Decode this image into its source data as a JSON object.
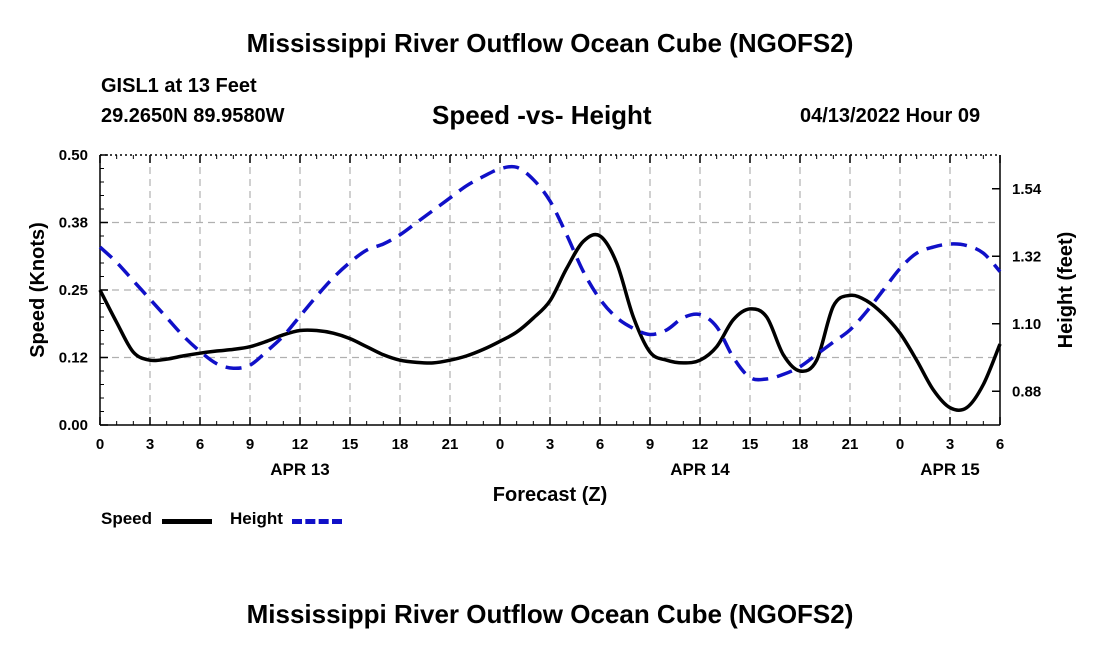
{
  "header": {
    "title": "Mississippi River Outflow Ocean Cube (NGOFS2)",
    "station": "GISL1 at 13 Feet",
    "coords": "29.2650N  89.9580W",
    "subtitle": "Speed -vs- Height",
    "datetime": "04/13/2022 Hour 09",
    "footer_title": "Mississippi River Outflow Ocean Cube (NGOFS2)"
  },
  "legend": {
    "speed_label": "Speed",
    "height_label": "Height"
  },
  "chart_data": {
    "type": "line",
    "title": "Speed -vs- Height",
    "xlabel": "Forecast (Z)",
    "ylabel_left": "Speed (Knots)",
    "ylabel_right": "Height (feet)",
    "x_hours_range": [
      0,
      54
    ],
    "x_ticks": [
      {
        "h": 0,
        "label": "0"
      },
      {
        "h": 3,
        "label": "3"
      },
      {
        "h": 6,
        "label": "6"
      },
      {
        "h": 9,
        "label": "9"
      },
      {
        "h": 12,
        "label": "12"
      },
      {
        "h": 15,
        "label": "15"
      },
      {
        "h": 18,
        "label": "18"
      },
      {
        "h": 21,
        "label": "21"
      },
      {
        "h": 24,
        "label": "0"
      },
      {
        "h": 27,
        "label": "3"
      },
      {
        "h": 30,
        "label": "6"
      },
      {
        "h": 33,
        "label": "9"
      },
      {
        "h": 36,
        "label": "12"
      },
      {
        "h": 39,
        "label": "15"
      },
      {
        "h": 42,
        "label": "18"
      },
      {
        "h": 45,
        "label": "21"
      },
      {
        "h": 48,
        "label": "0"
      },
      {
        "h": 51,
        "label": "3"
      },
      {
        "h": 54,
        "label": "6"
      }
    ],
    "date_labels": [
      {
        "h": 12,
        "label": "APR 13"
      },
      {
        "h": 36,
        "label": "APR 14"
      },
      {
        "h": 51,
        "label": "APR 15"
      }
    ],
    "y_left": {
      "range": [
        0,
        0.5
      ],
      "ticks": [
        {
          "v": 0.0,
          "label": "0.00"
        },
        {
          "v": 0.125,
          "label": "0.12"
        },
        {
          "v": 0.25,
          "label": "0.25"
        },
        {
          "v": 0.375,
          "label": "0.38"
        },
        {
          "v": 0.5,
          "label": "0.50"
        }
      ]
    },
    "y_right": {
      "range": [
        0.77,
        1.65
      ],
      "ticks": [
        {
          "v": 0.88,
          "label": "0.88"
        },
        {
          "v": 1.1,
          "label": "1.10"
        },
        {
          "v": 1.32,
          "label": "1.32"
        },
        {
          "v": 1.54,
          "label": "1.54"
        }
      ]
    },
    "series": [
      {
        "name": "Speed",
        "axis": "left",
        "color": "#000000",
        "style": "solid",
        "points": [
          [
            0,
            0.25
          ],
          [
            1,
            0.19
          ],
          [
            2,
            0.135
          ],
          [
            3,
            0.12
          ],
          [
            4,
            0.122
          ],
          [
            5,
            0.128
          ],
          [
            6,
            0.133
          ],
          [
            7,
            0.137
          ],
          [
            8,
            0.14
          ],
          [
            9,
            0.145
          ],
          [
            10,
            0.155
          ],
          [
            11,
            0.167
          ],
          [
            12,
            0.175
          ],
          [
            13,
            0.175
          ],
          [
            14,
            0.17
          ],
          [
            15,
            0.16
          ],
          [
            16,
            0.145
          ],
          [
            17,
            0.13
          ],
          [
            18,
            0.12
          ],
          [
            19,
            0.116
          ],
          [
            20,
            0.115
          ],
          [
            21,
            0.12
          ],
          [
            22,
            0.128
          ],
          [
            23,
            0.14
          ],
          [
            24,
            0.155
          ],
          [
            25,
            0.172
          ],
          [
            26,
            0.198
          ],
          [
            27,
            0.23
          ],
          [
            28,
            0.29
          ],
          [
            29,
            0.34
          ],
          [
            30,
            0.35
          ],
          [
            31,
            0.3
          ],
          [
            32,
            0.2
          ],
          [
            33,
            0.135
          ],
          [
            34,
            0.12
          ],
          [
            35,
            0.115
          ],
          [
            36,
            0.12
          ],
          [
            37,
            0.145
          ],
          [
            38,
            0.195
          ],
          [
            39,
            0.215
          ],
          [
            40,
            0.2
          ],
          [
            41,
            0.13
          ],
          [
            42,
            0.1
          ],
          [
            43,
            0.12
          ],
          [
            44,
            0.22
          ],
          [
            45,
            0.24
          ],
          [
            46,
            0.23
          ],
          [
            47,
            0.205
          ],
          [
            48,
            0.17
          ],
          [
            49,
            0.12
          ],
          [
            50,
            0.065
          ],
          [
            51,
            0.032
          ],
          [
            52,
            0.032
          ],
          [
            53,
            0.075
          ],
          [
            54,
            0.15
          ]
        ]
      },
      {
        "name": "Height",
        "axis": "right",
        "color": "#1010c8",
        "style": "dashed",
        "points": [
          [
            0,
            1.35
          ],
          [
            1,
            1.3
          ],
          [
            2,
            1.24
          ],
          [
            3,
            1.18
          ],
          [
            4,
            1.12
          ],
          [
            5,
            1.06
          ],
          [
            6,
            1.01
          ],
          [
            7,
            0.97
          ],
          [
            8,
            0.955
          ],
          [
            9,
            0.965
          ],
          [
            10,
            1.01
          ],
          [
            11,
            1.06
          ],
          [
            12,
            1.125
          ],
          [
            13,
            1.19
          ],
          [
            14,
            1.25
          ],
          [
            15,
            1.3
          ],
          [
            16,
            1.34
          ],
          [
            17,
            1.36
          ],
          [
            18,
            1.39
          ],
          [
            19,
            1.43
          ],
          [
            20,
            1.47
          ],
          [
            21,
            1.51
          ],
          [
            22,
            1.55
          ],
          [
            23,
            1.58
          ],
          [
            24,
            1.605
          ],
          [
            25,
            1.61
          ],
          [
            26,
            1.57
          ],
          [
            27,
            1.5
          ],
          [
            28,
            1.39
          ],
          [
            29,
            1.27
          ],
          [
            30,
            1.18
          ],
          [
            31,
            1.12
          ],
          [
            32,
            1.085
          ],
          [
            33,
            1.065
          ],
          [
            34,
            1.08
          ],
          [
            35,
            1.12
          ],
          [
            36,
            1.13
          ],
          [
            37,
            1.09
          ],
          [
            38,
            0.99
          ],
          [
            39,
            0.925
          ],
          [
            40,
            0.92
          ],
          [
            41,
            0.935
          ],
          [
            42,
            0.96
          ],
          [
            43,
            1.0
          ],
          [
            44,
            1.04
          ],
          [
            45,
            1.08
          ],
          [
            46,
            1.14
          ],
          [
            47,
            1.21
          ],
          [
            48,
            1.28
          ],
          [
            49,
            1.33
          ],
          [
            50,
            1.35
          ],
          [
            51,
            1.36
          ],
          [
            52,
            1.355
          ],
          [
            53,
            1.33
          ],
          [
            54,
            1.27
          ]
        ]
      }
    ],
    "grid": true
  }
}
